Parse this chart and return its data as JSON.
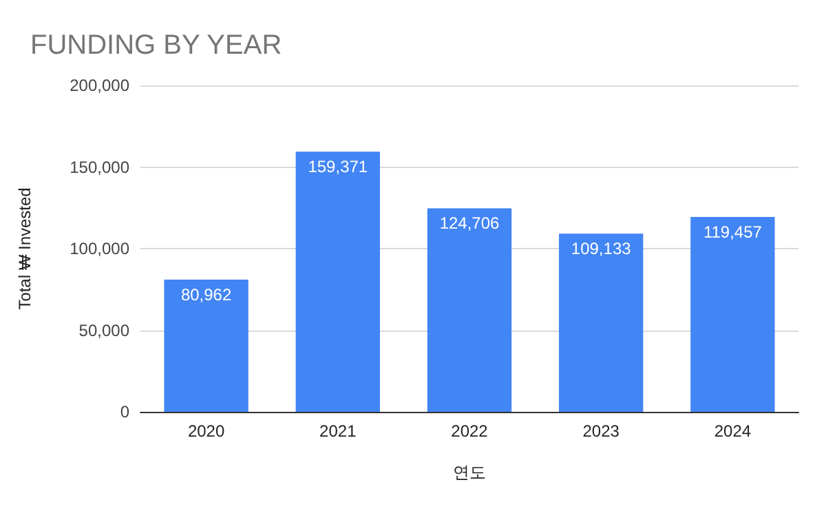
{
  "chart_data": {
    "type": "bar",
    "title": "FUNDING BY YEAR",
    "xlabel": "연도",
    "ylabel": "Total ₩ Invested",
    "categories": [
      "2020",
      "2021",
      "2022",
      "2023",
      "2024"
    ],
    "values": [
      80962,
      159371,
      124706,
      109133,
      119457
    ],
    "color": "#4285f4",
    "ylim": [
      0,
      200000
    ],
    "yticks": [
      {
        "value": 0,
        "label": "0"
      },
      {
        "value": 50000,
        "label": "50,000"
      },
      {
        "value": 100000,
        "label": "100,000"
      },
      {
        "value": 150000,
        "label": "150,000"
      },
      {
        "value": 200000,
        "label": "200,000"
      }
    ],
    "value_labels": [
      "80,962",
      "159,371",
      "124,706",
      "109,133",
      "119,457"
    ],
    "grid": "y"
  }
}
